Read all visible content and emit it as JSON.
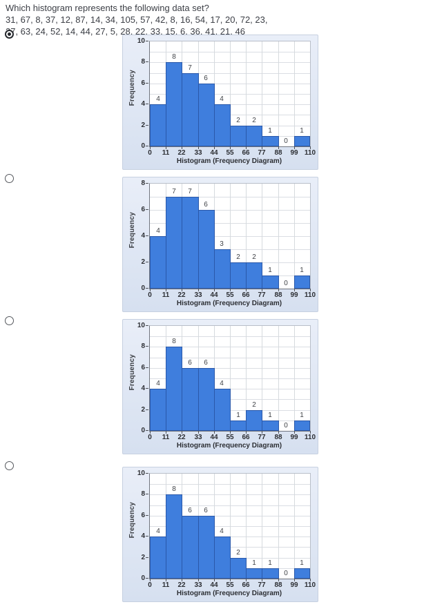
{
  "question": {
    "prompt": "Which histogram represents the following data set?",
    "data_line1": "31, 67, 8, 37, 12, 87, 14, 34, 105, 57, 42, 8, 16, 54, 17, 20, 72, 23,",
    "data_line2": "27, 63, 24, 52, 14, 44, 27, 5, 28, 22, 33, 15, 6, 36, 41, 21, 46"
  },
  "colors": {
    "bar_fill": "#3f7edd",
    "bar_border": "#2a58a9",
    "panel_bg_top": "#e9eef8",
    "panel_bg_bottom": "#d6e0f0",
    "gridline": "#dadde3",
    "axis": "#70757f",
    "tick_text": "#2c2e33"
  },
  "options": [
    {
      "selected": true
    },
    {
      "selected": false
    },
    {
      "selected": false
    },
    {
      "selected": false
    }
  ],
  "chart_data": [
    {
      "type": "bar",
      "title": "",
      "xlabel": "Histogram (Frequency Diagram)",
      "ylabel": "Frequency",
      "ylim": [
        0,
        10
      ],
      "yticks": [
        0,
        2,
        4,
        6,
        8,
        10
      ],
      "bin_edges": [
        0,
        11,
        22,
        33,
        44,
        55,
        66,
        77,
        88,
        99,
        110
      ],
      "frequencies": [
        4,
        8,
        7,
        6,
        4,
        2,
        2,
        1,
        0,
        1
      ],
      "grid": true,
      "legend": false
    },
    {
      "type": "bar",
      "title": "",
      "xlabel": "Histogram (Frequency Diagram)",
      "ylabel": "Frequency",
      "ylim": [
        0,
        8
      ],
      "yticks": [
        0,
        2,
        4,
        6,
        8
      ],
      "bin_edges": [
        0,
        11,
        22,
        33,
        44,
        55,
        66,
        77,
        88,
        99,
        110
      ],
      "frequencies": [
        4,
        7,
        7,
        6,
        3,
        2,
        2,
        1,
        0,
        1
      ],
      "grid": true,
      "legend": false
    },
    {
      "type": "bar",
      "title": "",
      "xlabel": "Histogram (Frequency Diagram)",
      "ylabel": "Frequency",
      "ylim": [
        0,
        10
      ],
      "yticks": [
        0,
        2,
        4,
        6,
        8,
        10
      ],
      "bin_edges": [
        0,
        11,
        22,
        33,
        44,
        55,
        66,
        77,
        88,
        99,
        110
      ],
      "frequencies": [
        4,
        8,
        6,
        6,
        4,
        1,
        2,
        1,
        0,
        1
      ],
      "grid": true,
      "legend": false
    },
    {
      "type": "bar",
      "title": "",
      "xlabel": "Histogram (Frequency Diagram)",
      "ylabel": "Frequency",
      "ylim": [
        0,
        10
      ],
      "yticks": [
        0,
        2,
        4,
        6,
        8,
        10
      ],
      "bin_edges": [
        0,
        11,
        22,
        33,
        44,
        55,
        66,
        77,
        88,
        99,
        110
      ],
      "frequencies": [
        4,
        8,
        6,
        6,
        4,
        2,
        1,
        1,
        0,
        1
      ],
      "grid": true,
      "legend": false
    }
  ],
  "layout": {
    "panel_tops": [
      50,
      256,
      462,
      676
    ],
    "radio_tops": [
      43,
      252,
      458,
      668
    ]
  }
}
